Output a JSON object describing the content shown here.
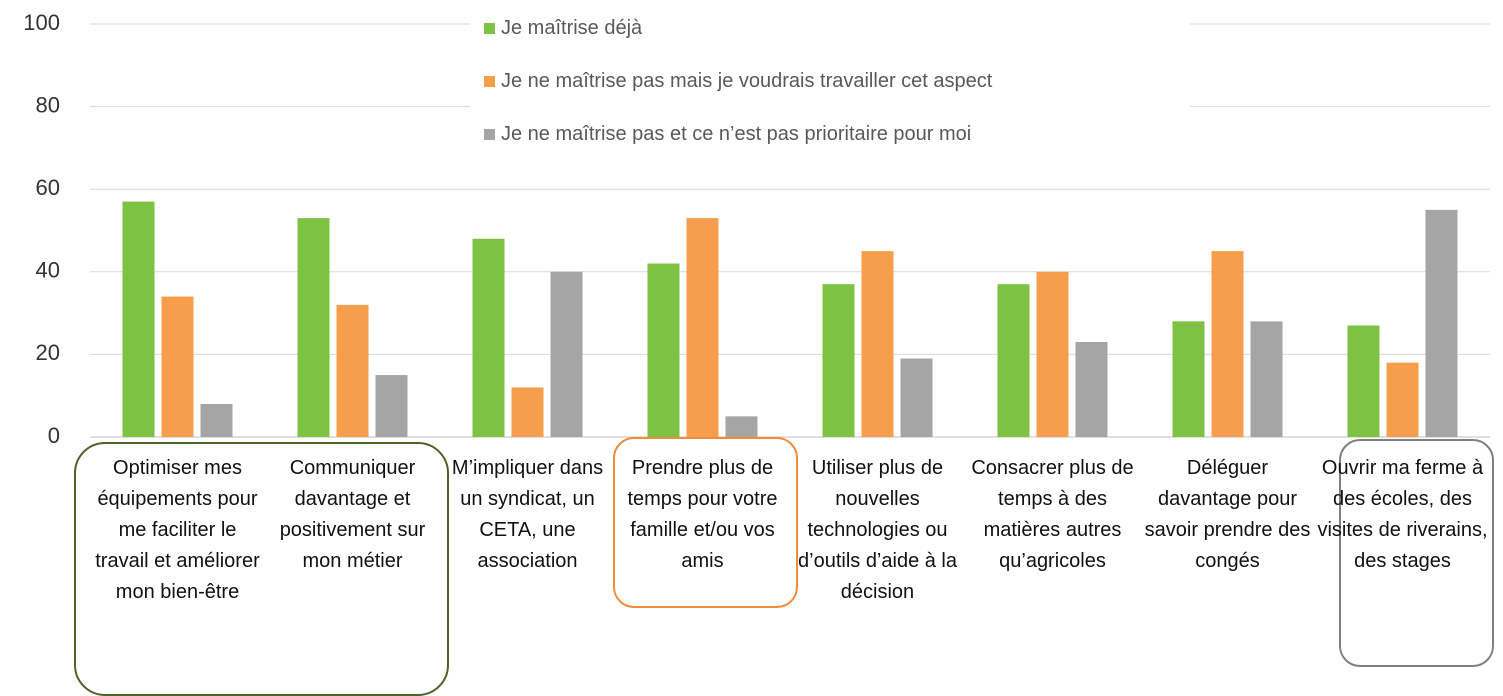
{
  "chart_data": {
    "type": "bar",
    "categories": [
      "Optimiser mes équipements pour me faciliter le travail et améliorer mon bien-être",
      "Communiquer davantage et positivement sur mon métier",
      "M’impliquer dans un syndicat, un CETA, une association",
      "Prendre plus de temps pour votre famille et/ou vos amis",
      "Utiliser plus de nouvelles technologies ou d’outils d’aide à la décision",
      "Consacrer plus de temps à des matières autres qu’agricoles",
      "Déléguer davantage pour savoir prendre des congés",
      "Ouvrir ma ferme à des écoles, des visites de riverains, des stages"
    ],
    "series": [
      {
        "name": "Je maîtrise déjà",
        "color": "#7dc242",
        "values": [
          57,
          53,
          48,
          42,
          37,
          37,
          28,
          27
        ]
      },
      {
        "name": "Je ne maîtrise pas mais je voudrais travailler cet aspect",
        "color": "#f79e4c",
        "values": [
          34,
          32,
          12,
          53,
          45,
          40,
          45,
          18
        ]
      },
      {
        "name": "Je ne maîtrise pas et ce n’est pas prioritaire pour moi",
        "color": "#a5a5a5",
        "values": [
          8,
          15,
          40,
          5,
          19,
          23,
          28,
          55
        ]
      }
    ],
    "ylim": [
      0,
      100
    ],
    "yticks": [
      0,
      20,
      40,
      60,
      80,
      100
    ],
    "grid": true,
    "legend": "top"
  }
}
